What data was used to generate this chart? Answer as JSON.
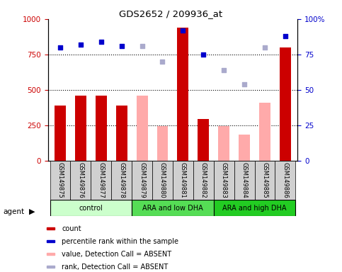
{
  "title": "GDS2652 / 209936_at",
  "samples": [
    "GSM149875",
    "GSM149876",
    "GSM149877",
    "GSM149878",
    "GSM149879",
    "GSM149880",
    "GSM149881",
    "GSM149882",
    "GSM149883",
    "GSM149884",
    "GSM149885",
    "GSM149886"
  ],
  "count_values": [
    390,
    460,
    460,
    390,
    null,
    null,
    940,
    295,
    null,
    null,
    null,
    800
  ],
  "count_absent": [
    null,
    null,
    null,
    null,
    460,
    245,
    null,
    null,
    245,
    185,
    410,
    null
  ],
  "percentile_present": [
    80,
    82,
    84,
    81,
    null,
    null,
    92,
    75,
    null,
    null,
    null,
    88
  ],
  "percentile_absent": [
    null,
    null,
    null,
    null,
    81,
    70,
    null,
    null,
    64,
    54,
    80,
    null
  ],
  "ylim_left": [
    0,
    1000
  ],
  "ylim_right": [
    0,
    100
  ],
  "yticks_left": [
    0,
    250,
    500,
    750,
    1000
  ],
  "yticks_right": [
    0,
    25,
    50,
    75,
    100
  ],
  "bar_color_present": "#cc0000",
  "bar_color_absent": "#ffaaaa",
  "dot_color_present": "#0000cc",
  "dot_color_absent": "#aaaacc",
  "group_colors": [
    "#ccffcc",
    "#55dd55",
    "#22cc22"
  ],
  "group_labels": [
    "control",
    "ARA and low DHA",
    "ARA and high DHA"
  ],
  "group_starts": [
    0,
    4,
    8
  ],
  "group_ends": [
    3,
    7,
    11
  ],
  "legend_items": [
    {
      "color": "#cc0000",
      "label": "count"
    },
    {
      "color": "#0000cc",
      "label": "percentile rank within the sample"
    },
    {
      "color": "#ffaaaa",
      "label": "value, Detection Call = ABSENT"
    },
    {
      "color": "#aaaacc",
      "label": "rank, Detection Call = ABSENT"
    }
  ]
}
